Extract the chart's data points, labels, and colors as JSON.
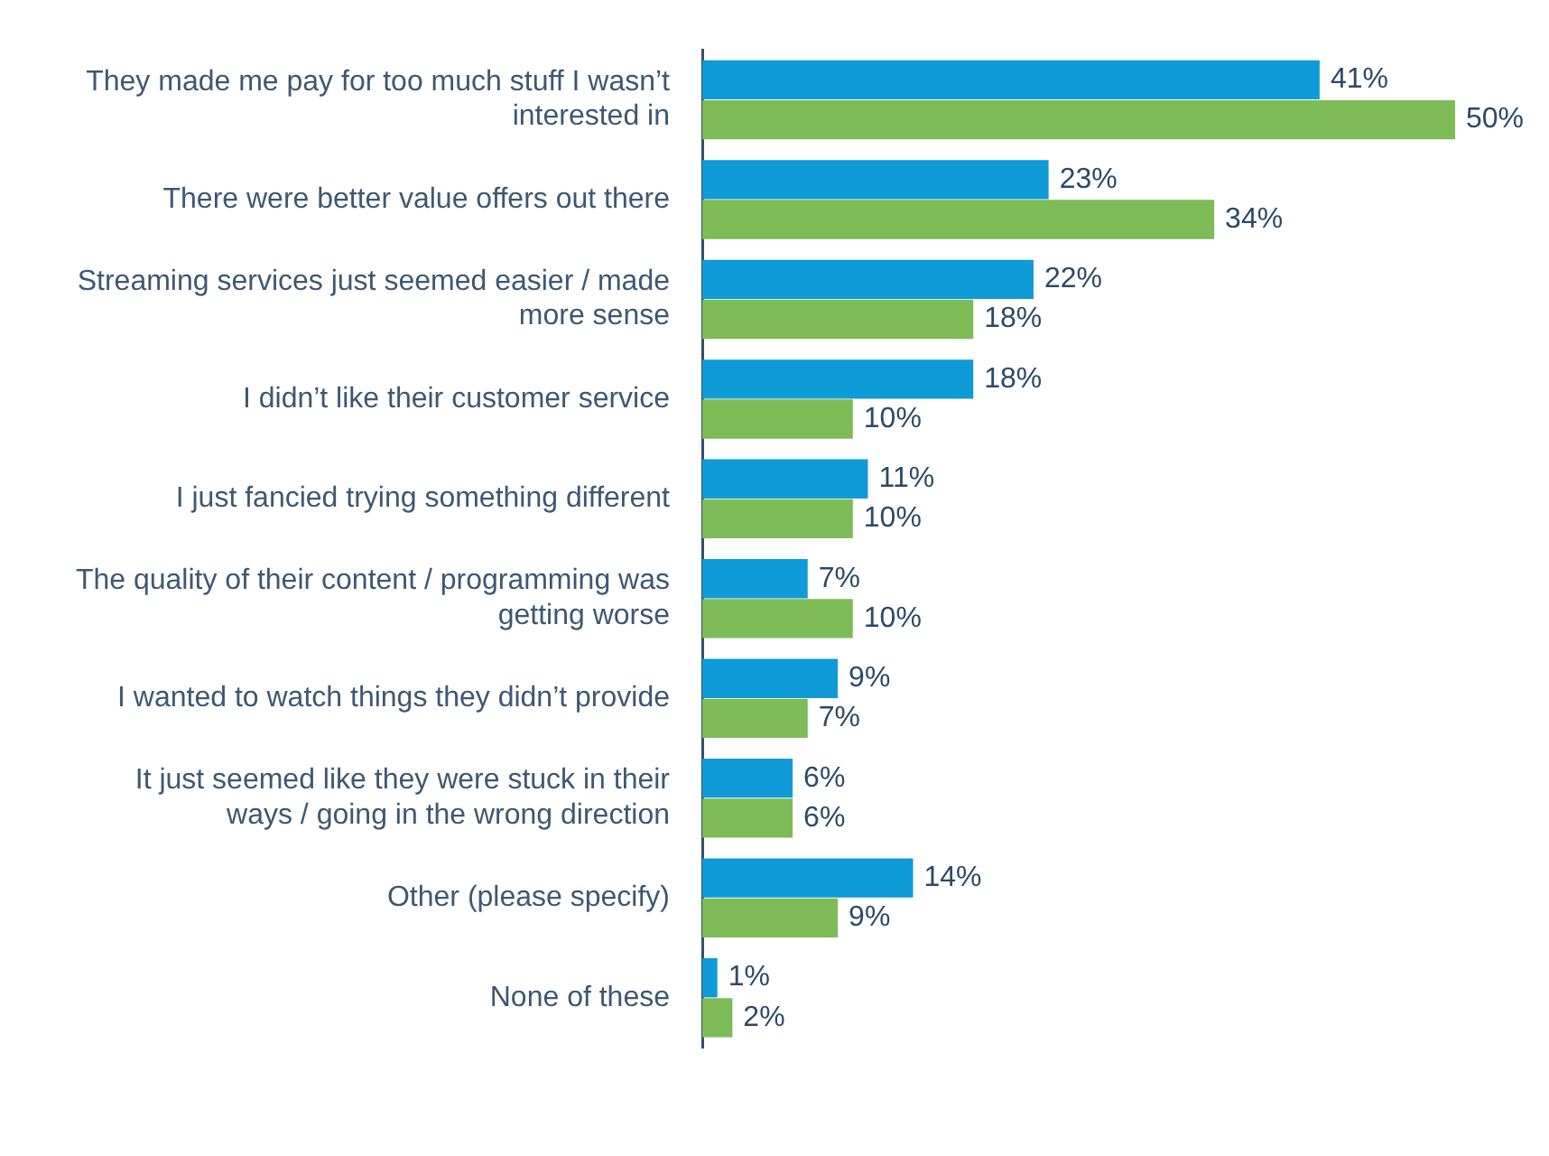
{
  "chart_data": {
    "type": "bar",
    "orientation": "horizontal",
    "tick_labels": "y",
    "categories": [
      "They made me pay for too much stuff I wasn’t interested in",
      "There were better value offers out there",
      "Streaming services just seemed easier / made more sense",
      "I didn’t like their customer service",
      "I just fancied trying something different",
      "The quality of their content / programming was getting worse",
      "I wanted to watch things they didn’t provide",
      "It just seemed like they were stuck in their ways / going in the wrong direction",
      "Other (please specify)",
      "None of these"
    ],
    "series": [
      {
        "color": "#0f9ad8",
        "values": [
          41,
          23,
          22,
          18,
          11,
          7,
          9,
          6,
          14,
          1
        ],
        "value_labels": [
          "41%",
          "23%",
          "22%",
          "18%",
          "11%",
          "7%",
          "9%",
          "6%",
          "14%",
          "1%"
        ]
      },
      {
        "color": "#7dbb57",
        "values": [
          50,
          34,
          18,
          10,
          10,
          10,
          7,
          6,
          9,
          2
        ],
        "value_labels": [
          "50%",
          "34%",
          "18%",
          "10%",
          "10%",
          "10%",
          "7%",
          "6%",
          "9%",
          "2%"
        ]
      }
    ]
  }
}
